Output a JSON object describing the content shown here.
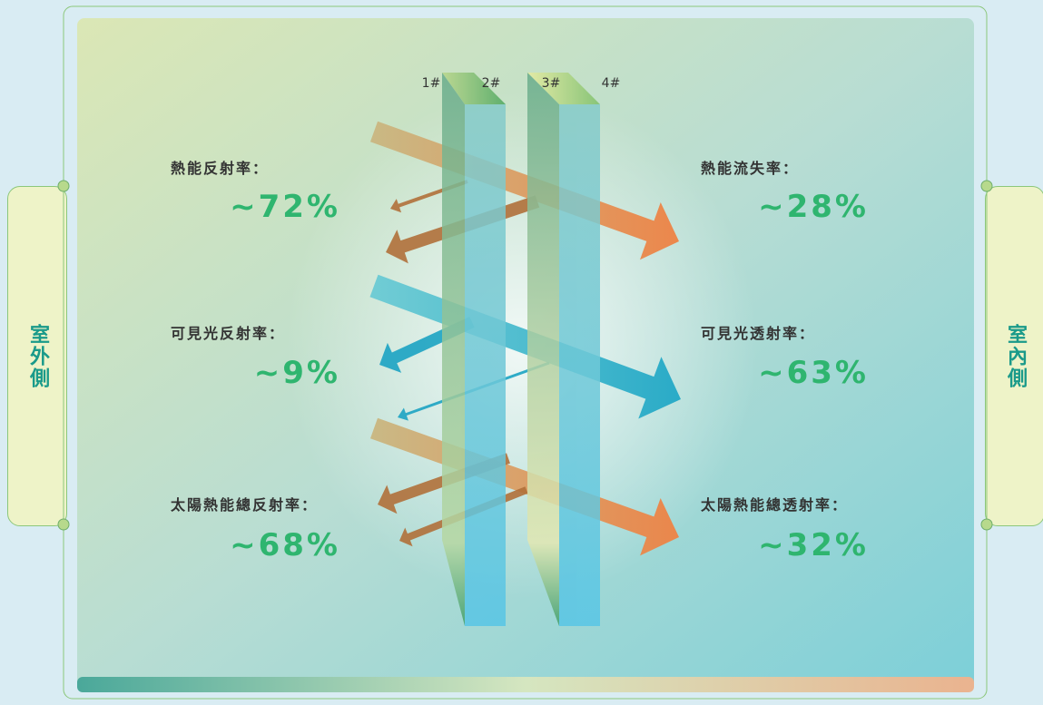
{
  "panes": {
    "labels": [
      "1#",
      "2#",
      "3#",
      "4#"
    ]
  },
  "sides": {
    "outdoor": "室外側",
    "indoor": "室內側"
  },
  "left": [
    {
      "label": "熱能反射率：",
      "value": "~72%"
    },
    {
      "label": "可見光反射率：",
      "value": "~9%"
    },
    {
      "label": "太陽熱能總反射率：",
      "value": "~68%"
    }
  ],
  "right": [
    {
      "label": "熱能流失率：",
      "value": "~28%"
    },
    {
      "label": "可見光透射率：",
      "value": "~63%"
    },
    {
      "label": "太陽熱能總透射率：",
      "value": "~32%"
    }
  ]
}
